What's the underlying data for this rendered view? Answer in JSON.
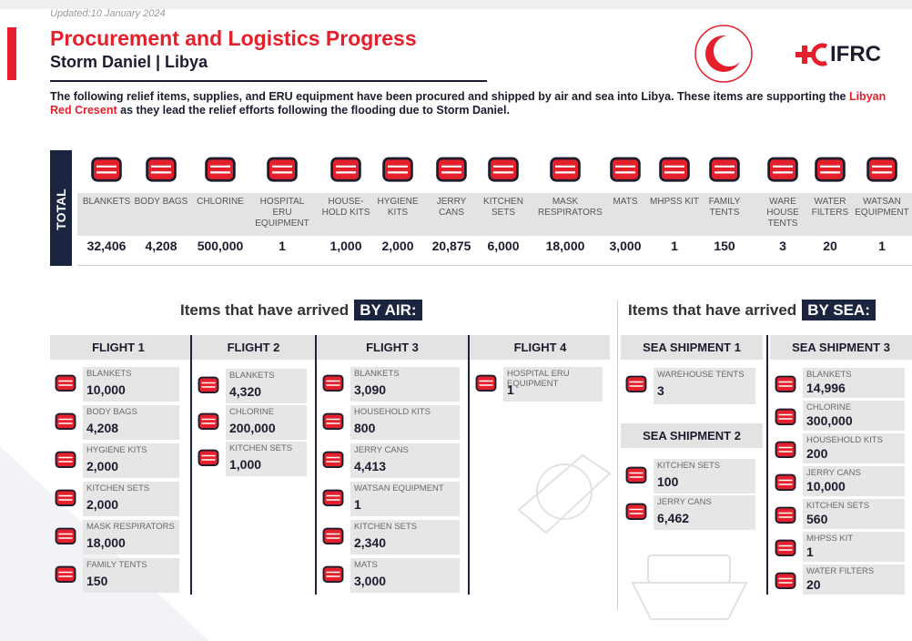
{
  "header": {
    "updated": "Updated:10 January 2024",
    "title": "Procurement and Logistics Progress",
    "subtitle": "Storm Daniel | Libya",
    "logo": "IFRC"
  },
  "intro": {
    "before": "The following relief items, supplies, and ERU equipment have been procured and shipped by air and sea into Libya. These items are supporting the ",
    "highlight": "Libyan Red Cresent",
    "after": " as they lead the relief efforts following the flooding due to Storm Daniel."
  },
  "total": {
    "label": "TOTAL",
    "items": [
      {
        "label": "BLANKETS",
        "value": "32,406"
      },
      {
        "label": "BODY BAGS",
        "value": "4,208"
      },
      {
        "label": "CHLORINE",
        "value": "500,000"
      },
      {
        "label": "HOSPITAL ERU EQUIPMENT",
        "value": "1"
      },
      {
        "label": "HOUSE- HOLD KITS",
        "value": "1,000"
      },
      {
        "label": "HYGIENE KITS",
        "value": "2,000"
      },
      {
        "label": "JERRY CANS",
        "value": "20,875"
      },
      {
        "label": "KITCHEN SETS",
        "value": "6,000"
      },
      {
        "label": "MASK RESPIRATORS",
        "value": "18,000"
      },
      {
        "label": "MATS",
        "value": "3,000"
      },
      {
        "label": "MHPSS KIT",
        "value": "1"
      },
      {
        "label": "FAMILY TENTS",
        "value": "150"
      },
      {
        "label": "WARE HOUSE TENTS",
        "value": "3"
      },
      {
        "label": "WATER FILTERS",
        "value": "20"
      },
      {
        "label": "WATSAN EQUIPMENT",
        "value": "1"
      }
    ]
  },
  "air": {
    "heading": "Items that have arrived",
    "tag": "BY AIR:",
    "flights": [
      {
        "name": "FLIGHT 1",
        "items": [
          {
            "label": "BLANKETS",
            "value": "10,000"
          },
          {
            "label": "BODY BAGS",
            "value": "4,208"
          },
          {
            "label": "HYGIENE KITS",
            "value": "2,000"
          },
          {
            "label": "KITCHEN SETS",
            "value": "2,000"
          },
          {
            "label": "MASK RESPIRATORS",
            "value": "18,000"
          },
          {
            "label": "FAMILY TENTS",
            "value": "150"
          }
        ]
      },
      {
        "name": "FLIGHT 2",
        "items": [
          {
            "label": "BLANKETS",
            "value": "4,320"
          },
          {
            "label": "CHLORINE",
            "value": "200,000"
          },
          {
            "label": "KITCHEN SETS",
            "value": "1,000"
          }
        ]
      },
      {
        "name": "FLIGHT 3",
        "items": [
          {
            "label": "BLANKETS",
            "value": "3,090"
          },
          {
            "label": "HOUSEHOLD KITS",
            "value": "800"
          },
          {
            "label": "JERRY CANS",
            "value": "4,413"
          },
          {
            "label": "WATSAN EQUIPMENT",
            "value": "1"
          },
          {
            "label": "KITCHEN SETS",
            "value": "2,340"
          },
          {
            "label": "MATS",
            "value": "3,000"
          }
        ]
      },
      {
        "name": "FLIGHT 4",
        "items": [
          {
            "label": "HOSPITAL ERU EQUIPMENT",
            "value": "1"
          }
        ]
      }
    ]
  },
  "sea": {
    "heading": "Items that have arrived",
    "tag": "BY SEA:",
    "shipments": [
      {
        "name": "SEA SHIPMENT 1",
        "items": [
          {
            "label": "WAREHOUSE TENTS",
            "value": "3"
          }
        ]
      },
      {
        "name": "SEA SHIPMENT 2",
        "items": [
          {
            "label": "KITCHEN SETS",
            "value": "100"
          },
          {
            "label": "JERRY CANS",
            "value": "6,462"
          }
        ]
      },
      {
        "name": "SEA SHIPMENT 3",
        "items": [
          {
            "label": "BLANKETS",
            "value": "14,996"
          },
          {
            "label": "CHLORINE",
            "value": "300,000"
          },
          {
            "label": "HOUSEHOLD KITS",
            "value": "200"
          },
          {
            "label": "JERRY CANS",
            "value": "10,000"
          },
          {
            "label": "KITCHEN SETS",
            "value": "560"
          },
          {
            "label": "MHPSS KIT",
            "value": "1"
          },
          {
            "label": "WATER FILTERS",
            "value": "20"
          }
        ]
      }
    ]
  }
}
